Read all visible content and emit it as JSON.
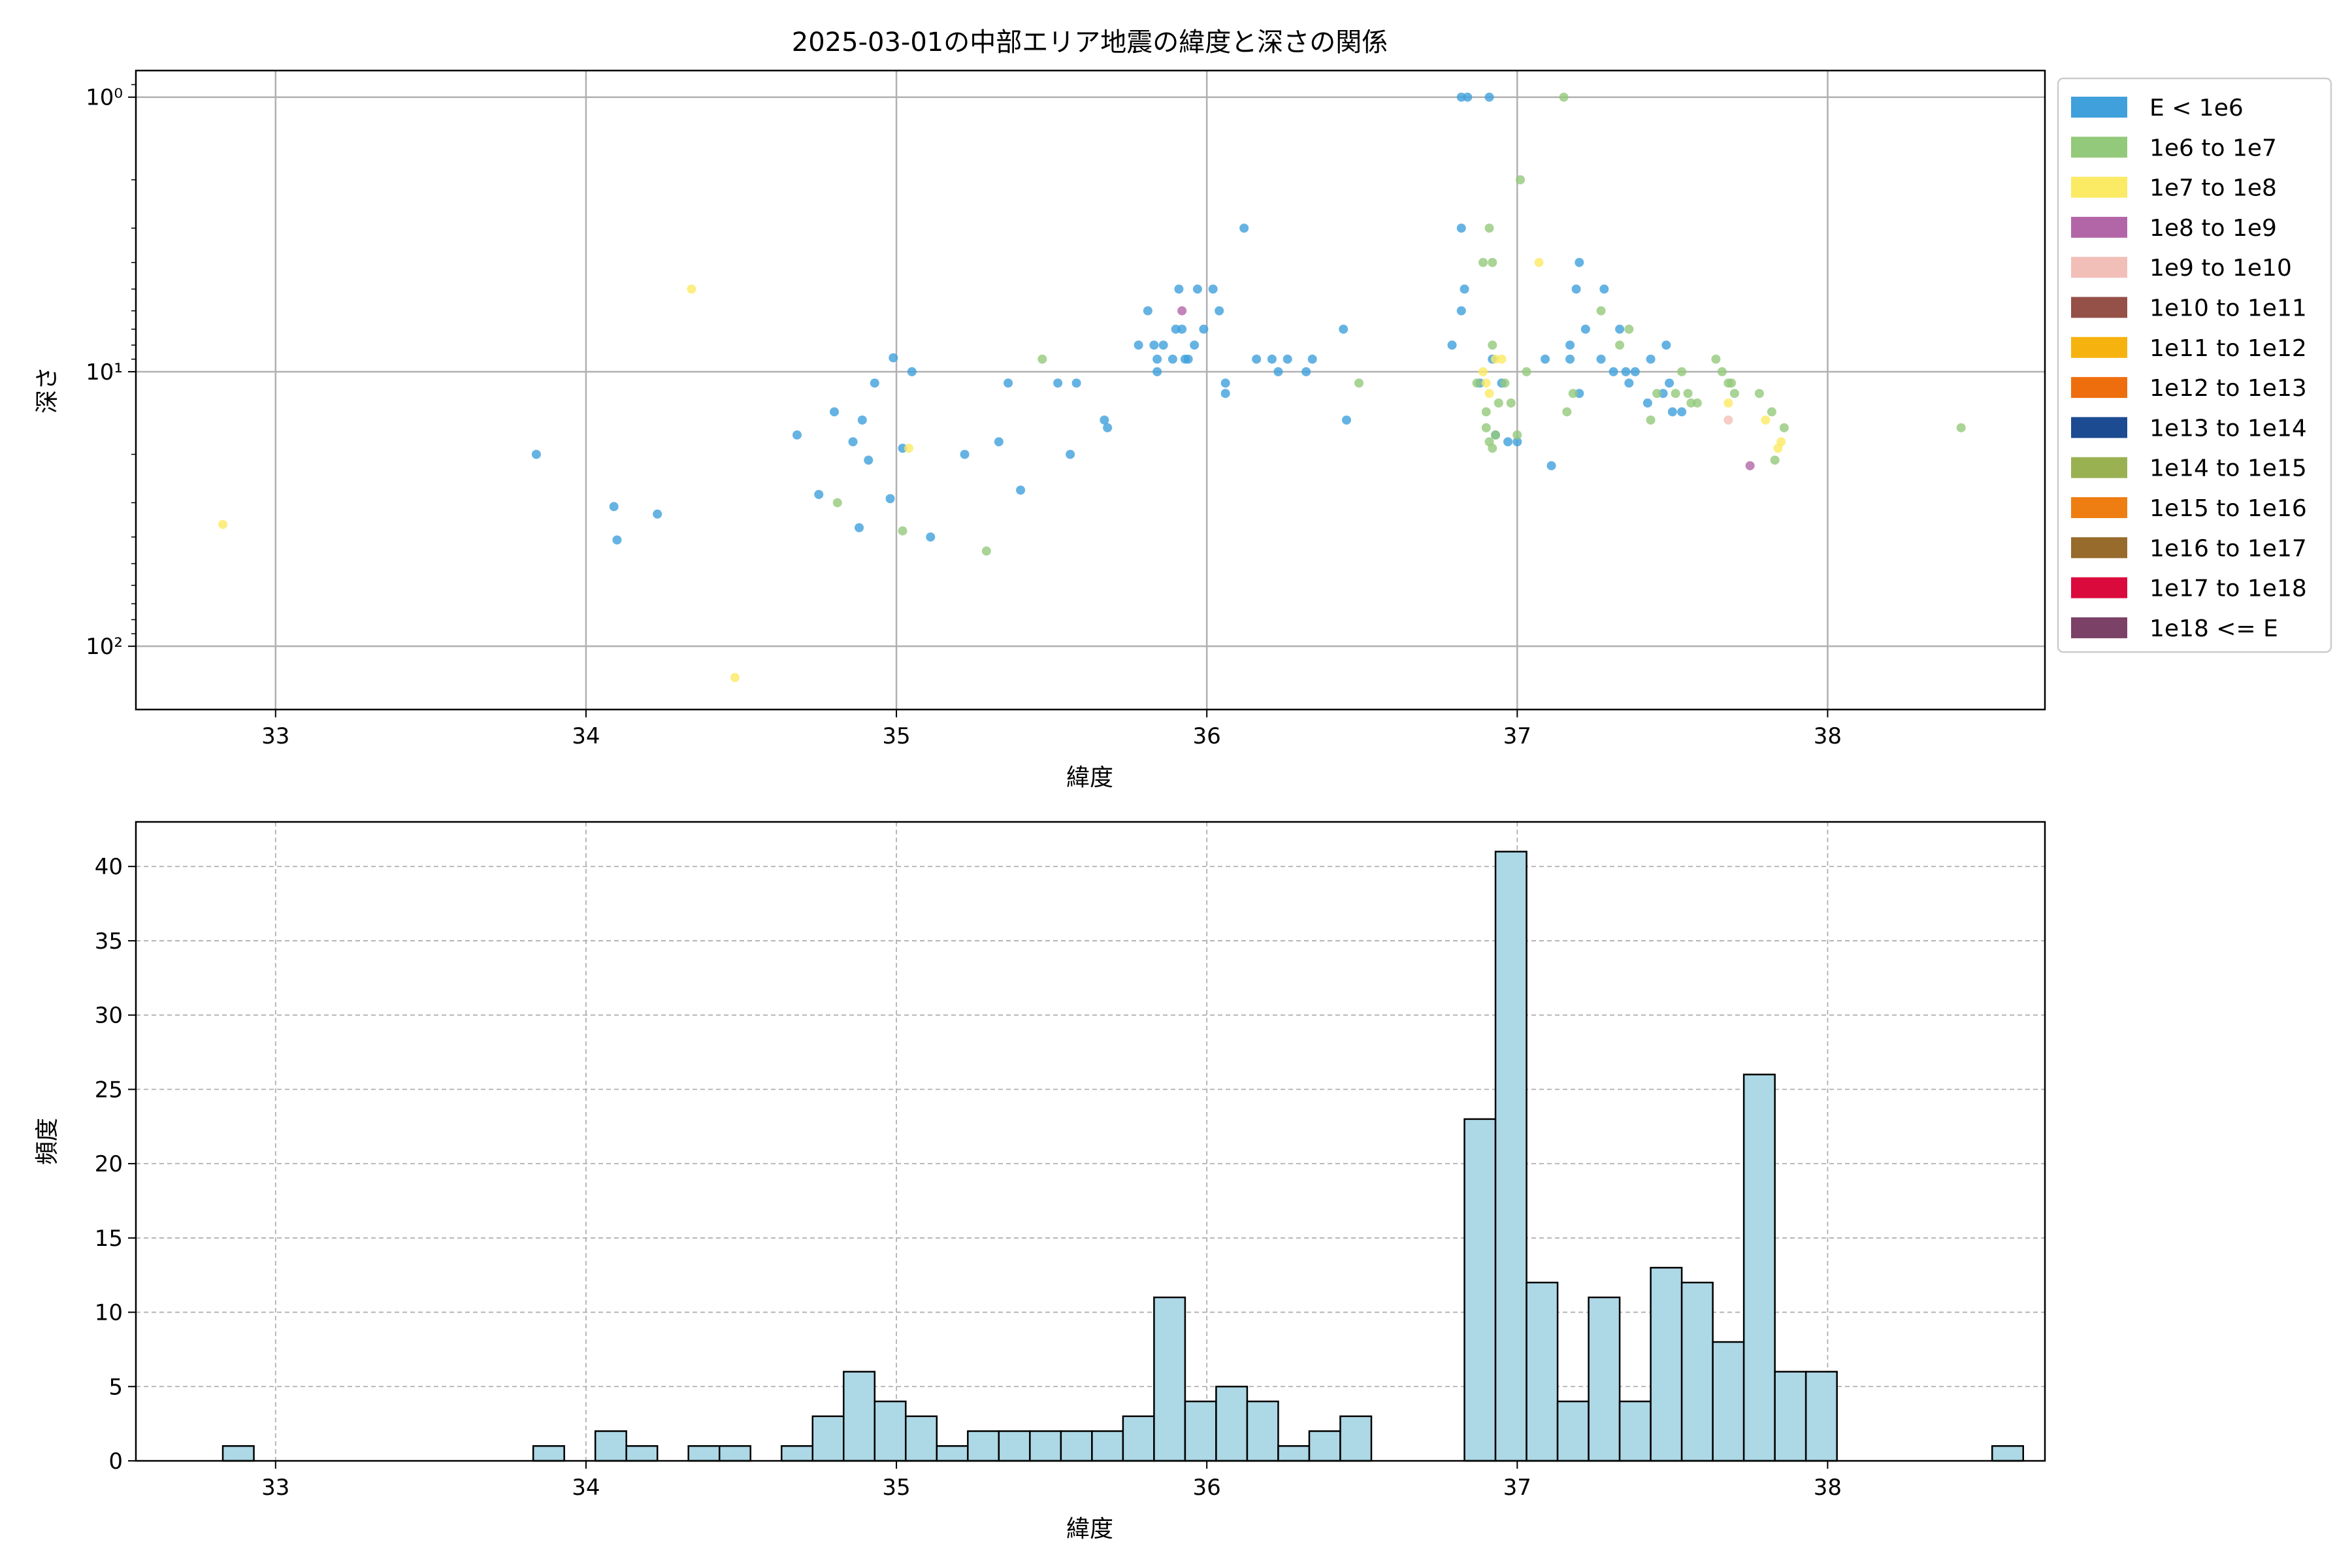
{
  "chart_data": [
    {
      "type": "scatter",
      "title": "2025-03-01の中部エリア地震の緯度と深さの関係",
      "xlabel": "緯度",
      "ylabel": "深さ",
      "xlim": [
        32.55,
        38.7
      ],
      "ylim": [
        170,
        0.8
      ],
      "yscale": "log",
      "y_inverted": true,
      "grid": true,
      "x_ticks": [
        33,
        34,
        35,
        36,
        37,
        38
      ],
      "x_tick_labels": [
        "33",
        "34",
        "35",
        "36",
        "37",
        "38"
      ],
      "y_ticks": [
        1,
        10,
        100
      ],
      "y_tick_labels": [
        "10⁰",
        "10¹",
        "10²"
      ],
      "legend_position": "outside-right",
      "legend": [
        {
          "label": "E < 1e6",
          "color": "#3fa0dc"
        },
        {
          "label": "1e6 to 1e7",
          "color": "#93c97a"
        },
        {
          "label": "1e7 to 1e8",
          "color": "#fbea63"
        },
        {
          "label": "1e8 to 1e9",
          "color": "#b366a7"
        },
        {
          "label": "1e9 to 1e10",
          "color": "#f2bfb8"
        },
        {
          "label": "1e10 to 1e11",
          "color": "#955048"
        },
        {
          "label": "1e11 to 1e12",
          "color": "#f6b20e"
        },
        {
          "label": "1e12 to 1e13",
          "color": "#ee6e0e"
        },
        {
          "label": "1e13 to 1e14",
          "color": "#1d4b92"
        },
        {
          "label": "1e14 to 1e15",
          "color": "#9ab152"
        },
        {
          "label": "1e15 to 1e16",
          "color": "#ef7e12"
        },
        {
          "label": "1e16 to 1e17",
          "color": "#966b2c"
        },
        {
          "label": "1e17 to 1e18",
          "color": "#db0a3d"
        },
        {
          "label": "1e18 <= E",
          "color": "#7b4166"
        }
      ],
      "series": [
        {
          "name": "E < 1e6",
          "points": [
            [
              33.84,
              20
            ],
            [
              34.09,
              31
            ],
            [
              34.1,
              41
            ],
            [
              34.23,
              33
            ],
            [
              34.68,
              17
            ],
            [
              34.75,
              28
            ],
            [
              34.8,
              14
            ],
            [
              34.86,
              18
            ],
            [
              34.88,
              37
            ],
            [
              34.89,
              15
            ],
            [
              34.91,
              21
            ],
            [
              34.93,
              11
            ],
            [
              34.98,
              29
            ],
            [
              34.99,
              8.9
            ],
            [
              35.02,
              19
            ],
            [
              35.05,
              10
            ],
            [
              35.11,
              40
            ],
            [
              35.22,
              20
            ],
            [
              35.33,
              18
            ],
            [
              35.36,
              11
            ],
            [
              35.4,
              27
            ],
            [
              35.52,
              11
            ],
            [
              35.56,
              20
            ],
            [
              35.58,
              11
            ],
            [
              35.67,
              15
            ],
            [
              35.68,
              16
            ],
            [
              35.78,
              8
            ],
            [
              35.81,
              6
            ],
            [
              35.83,
              8
            ],
            [
              35.84,
              9
            ],
            [
              35.84,
              10
            ],
            [
              35.86,
              8
            ],
            [
              35.89,
              9
            ],
            [
              35.9,
              7
            ],
            [
              35.91,
              5
            ],
            [
              35.92,
              7
            ],
            [
              35.93,
              9
            ],
            [
              35.94,
              9
            ],
            [
              35.96,
              8
            ],
            [
              35.97,
              5
            ],
            [
              35.99,
              7
            ],
            [
              36.02,
              5
            ],
            [
              36.04,
              6
            ],
            [
              36.06,
              11
            ],
            [
              36.06,
              12
            ],
            [
              36.12,
              3
            ],
            [
              36.16,
              9
            ],
            [
              36.21,
              9
            ],
            [
              36.23,
              10
            ],
            [
              36.26,
              9
            ],
            [
              36.32,
              10
            ],
            [
              36.34,
              9
            ],
            [
              36.44,
              7
            ],
            [
              36.45,
              15
            ],
            [
              36.79,
              8
            ],
            [
              36.82,
              6
            ],
            [
              36.82,
              3
            ],
            [
              36.83,
              5
            ],
            [
              36.82,
              1
            ],
            [
              36.84,
              1
            ],
            [
              36.88,
              11
            ],
            [
              36.91,
              1
            ],
            [
              36.92,
              9
            ],
            [
              36.93,
              17
            ],
            [
              36.95,
              11
            ],
            [
              36.97,
              18
            ],
            [
              37.0,
              18
            ],
            [
              37.09,
              9
            ],
            [
              37.11,
              22
            ],
            [
              37.17,
              8
            ],
            [
              37.17,
              9
            ],
            [
              37.19,
              5
            ],
            [
              37.2,
              12
            ],
            [
              37.2,
              4
            ],
            [
              37.22,
              7
            ],
            [
              37.27,
              9
            ],
            [
              37.28,
              5
            ],
            [
              37.31,
              10
            ],
            [
              37.33,
              7
            ],
            [
              37.35,
              10
            ],
            [
              37.36,
              11
            ],
            [
              37.38,
              10
            ],
            [
              37.42,
              13
            ],
            [
              37.43,
              9
            ],
            [
              37.47,
              12
            ],
            [
              37.48,
              8
            ],
            [
              37.49,
              11
            ],
            [
              37.5,
              14
            ],
            [
              37.53,
              14
            ]
          ]
        },
        {
          "name": "1e6 to 1e7",
          "points": [
            [
              34.81,
              30
            ],
            [
              35.02,
              38
            ],
            [
              35.29,
              45
            ],
            [
              35.47,
              9
            ],
            [
              36.49,
              11
            ],
            [
              36.87,
              11
            ],
            [
              36.9,
              14
            ],
            [
              36.9,
              16
            ],
            [
              36.91,
              18
            ],
            [
              36.92,
              19
            ],
            [
              36.93,
              17
            ],
            [
              36.91,
              3
            ],
            [
              36.89,
              4
            ],
            [
              36.92,
              4
            ],
            [
              36.92,
              8
            ],
            [
              36.94,
              13
            ],
            [
              36.96,
              11
            ],
            [
              36.98,
              13
            ],
            [
              37.0,
              17
            ],
            [
              37.01,
              2
            ],
            [
              37.03,
              10
            ],
            [
              37.15,
              1
            ],
            [
              37.16,
              14
            ],
            [
              37.18,
              12
            ],
            [
              37.27,
              6
            ],
            [
              37.33,
              8
            ],
            [
              37.36,
              7
            ],
            [
              37.43,
              15
            ],
            [
              37.45,
              12
            ],
            [
              37.51,
              12
            ],
            [
              37.53,
              10
            ],
            [
              37.55,
              12
            ],
            [
              37.56,
              13
            ],
            [
              37.58,
              13
            ],
            [
              37.64,
              9
            ],
            [
              37.66,
              10
            ],
            [
              37.68,
              11
            ],
            [
              37.69,
              11
            ],
            [
              37.7,
              12
            ],
            [
              37.78,
              12
            ],
            [
              37.82,
              14
            ],
            [
              37.83,
              21
            ],
            [
              37.86,
              16
            ],
            [
              38.43,
              16
            ]
          ]
        },
        {
          "name": "1e7 to 1e8",
          "points": [
            [
              32.83,
              36
            ],
            [
              34.34,
              5
            ],
            [
              34.48,
              130
            ],
            [
              35.04,
              19
            ],
            [
              36.89,
              10
            ],
            [
              36.9,
              11
            ],
            [
              36.91,
              12
            ],
            [
              36.93,
              9
            ],
            [
              36.95,
              9
            ],
            [
              37.07,
              4
            ],
            [
              37.68,
              13
            ],
            [
              37.8,
              15
            ],
            [
              37.84,
              19
            ],
            [
              37.85,
              18
            ]
          ]
        },
        {
          "name": "1e8 to 1e9",
          "points": [
            [
              35.92,
              6
            ],
            [
              37.75,
              22
            ]
          ]
        },
        {
          "name": "1e9 to 1e10",
          "points": [
            [
              37.68,
              15
            ]
          ]
        }
      ]
    },
    {
      "type": "bar",
      "title": "",
      "xlabel": "緯度",
      "ylabel": "頻度",
      "xlim": [
        32.55,
        38.7
      ],
      "ylim": [
        0,
        43
      ],
      "grid": true,
      "grid_style": "dashed",
      "x_ticks": [
        33,
        34,
        35,
        36,
        37,
        38
      ],
      "x_tick_labels": [
        "33",
        "34",
        "35",
        "36",
        "37",
        "38"
      ],
      "y_ticks": [
        0,
        5,
        10,
        15,
        20,
        25,
        30,
        35,
        40
      ],
      "y_tick_labels": [
        "0",
        "5",
        "10",
        "15",
        "20",
        "25",
        "30",
        "35",
        "40"
      ],
      "bar_color": "#add8e6",
      "bar_edge_color": "#000000",
      "bin_start": 32.83,
      "bin_width": 0.1,
      "values": [
        1,
        0,
        0,
        0,
        0,
        0,
        0,
        0,
        0,
        0,
        1,
        0,
        2,
        1,
        0,
        1,
        1,
        0,
        1,
        3,
        6,
        4,
        3,
        1,
        2,
        2,
        2,
        2,
        2,
        3,
        11,
        4,
        5,
        4,
        1,
        2,
        3,
        0,
        0,
        0,
        23,
        41,
        12,
        4,
        11,
        4,
        13,
        12,
        8,
        26,
        6,
        6,
        0,
        0,
        0,
        0,
        0,
        1
      ]
    }
  ]
}
